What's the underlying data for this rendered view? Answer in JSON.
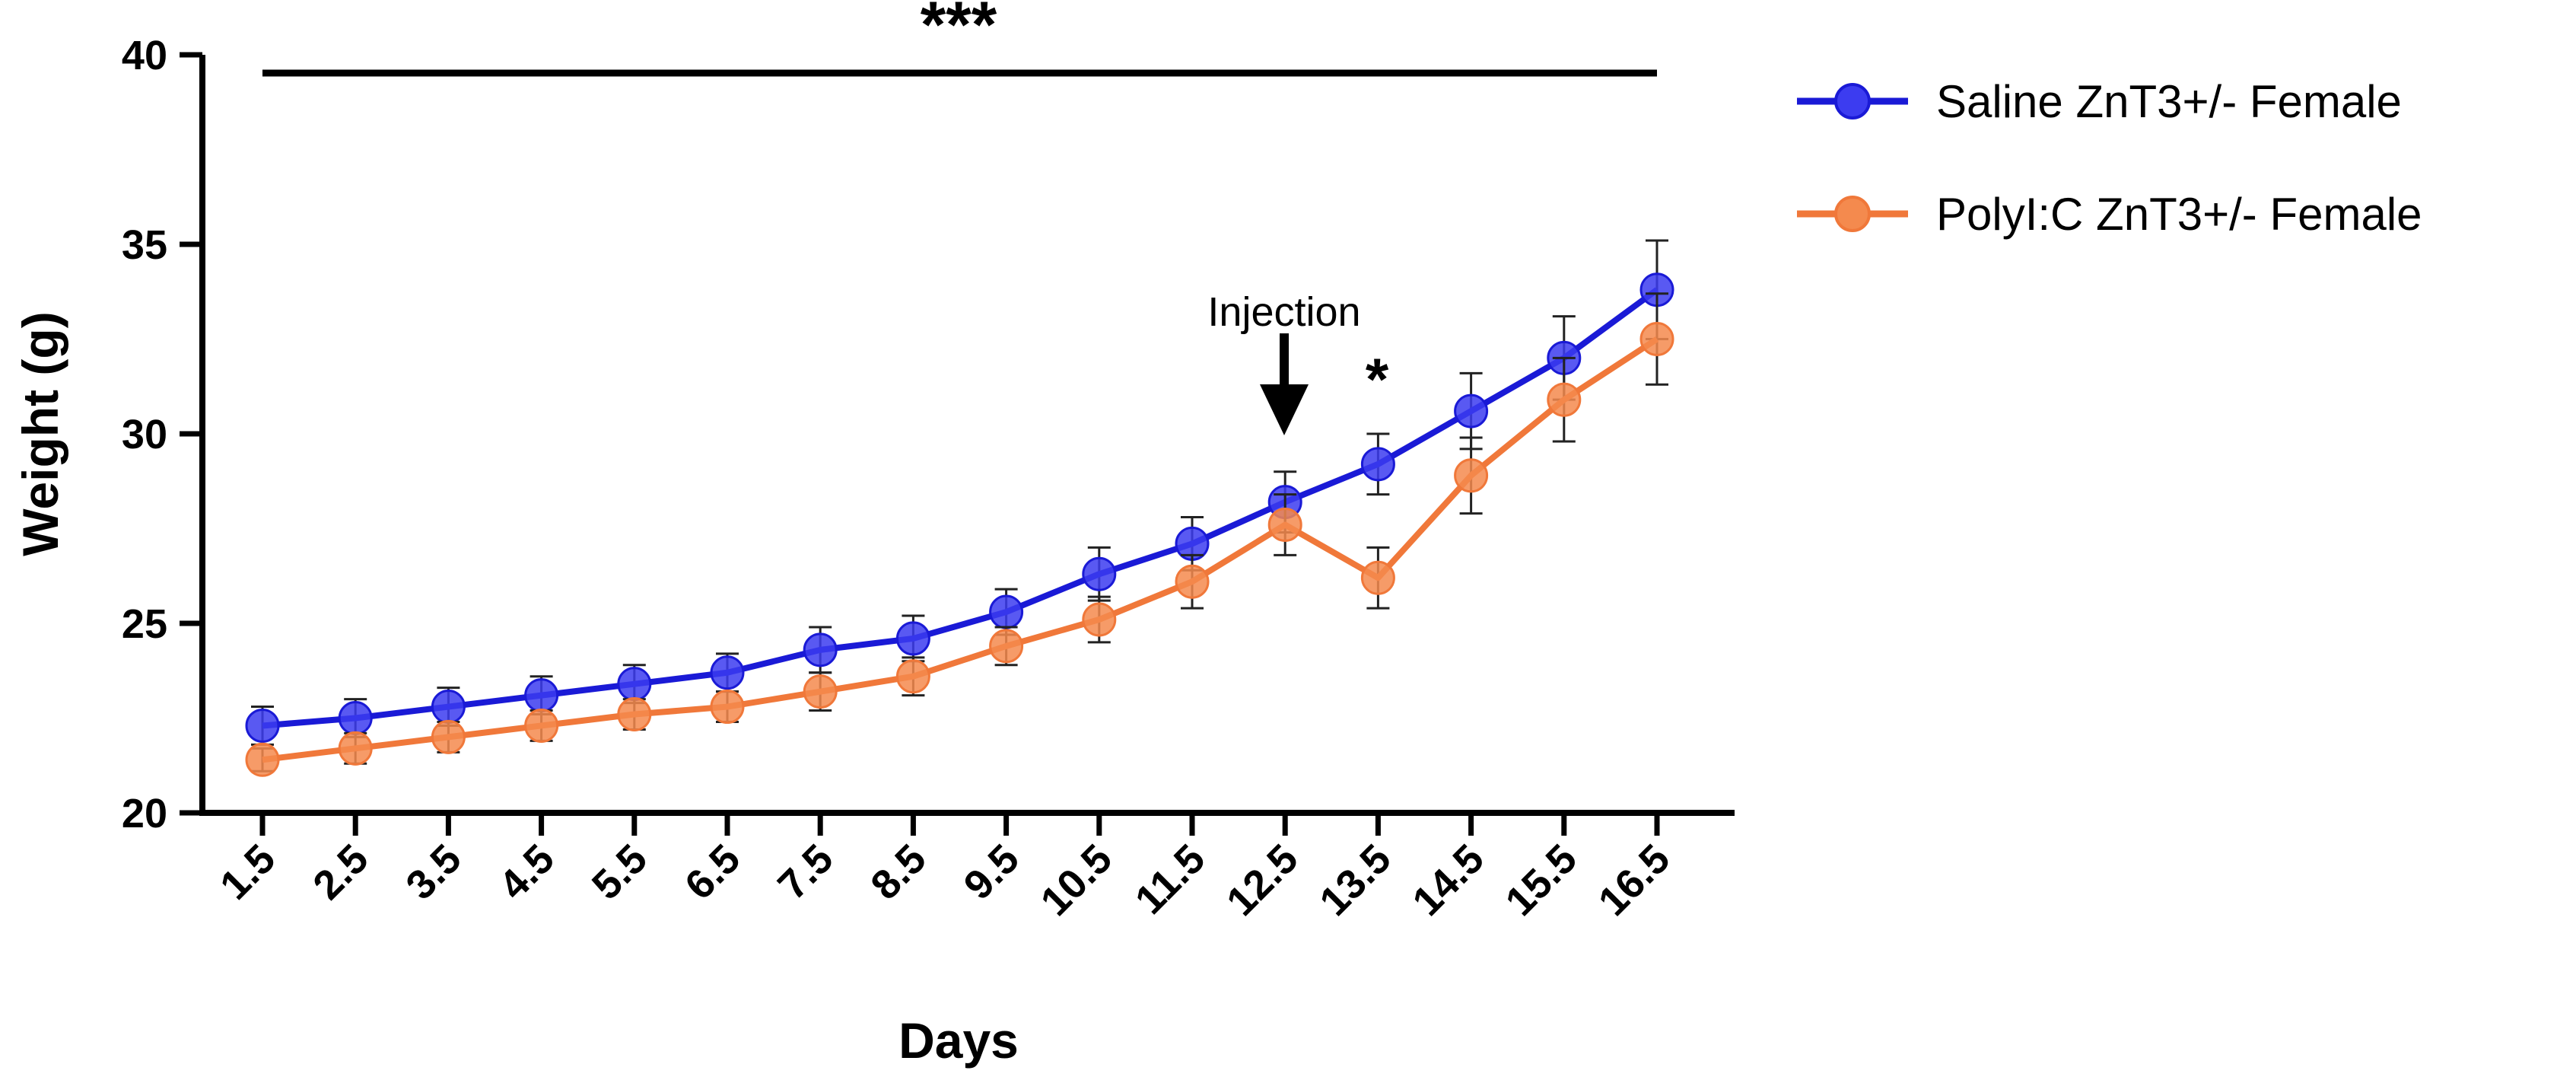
{
  "chart_data": {
    "type": "line",
    "title": "",
    "xlabel": "Days",
    "ylabel": "Weight (g)",
    "ylim": [
      20,
      40
    ],
    "yticks": [
      "20",
      "25",
      "30",
      "35",
      "40"
    ],
    "categories": [
      "1.5",
      "2.5",
      "3.5",
      "4.5",
      "5.5",
      "6.5",
      "7.5",
      "8.5",
      "9.5",
      "10.5",
      "11.5",
      "12.5",
      "13.5",
      "14.5",
      "15.5",
      "16.5"
    ],
    "series": [
      {
        "name": "Saline ZnT3+/- Female",
        "color": "#1a1ad6",
        "values": [
          22.3,
          22.5,
          22.8,
          23.1,
          23.4,
          23.7,
          24.3,
          24.6,
          25.3,
          26.3,
          27.1,
          28.2,
          29.2,
          30.6,
          32.0,
          33.8
        ],
        "errors": [
          0.5,
          0.5,
          0.5,
          0.5,
          0.5,
          0.5,
          0.6,
          0.6,
          0.6,
          0.7,
          0.7,
          0.8,
          0.8,
          1.0,
          1.1,
          1.3
        ]
      },
      {
        "name": "PolyI:C ZnT3+/- Female",
        "color": "#f0783a",
        "values": [
          21.4,
          21.7,
          22.0,
          22.3,
          22.6,
          22.8,
          23.2,
          23.6,
          24.4,
          25.1,
          26.1,
          27.6,
          26.2,
          28.9,
          30.9,
          32.5
        ],
        "errors": [
          0.3,
          0.4,
          0.4,
          0.4,
          0.4,
          0.4,
          0.5,
          0.5,
          0.5,
          0.6,
          0.7,
          0.8,
          0.8,
          1.0,
          1.1,
          1.2
        ]
      }
    ],
    "annotations": {
      "injection_label": "Injection",
      "injection_day": "12.5",
      "sig_overall": "***",
      "sig_point": "*",
      "sig_point_day": "13.5"
    }
  }
}
